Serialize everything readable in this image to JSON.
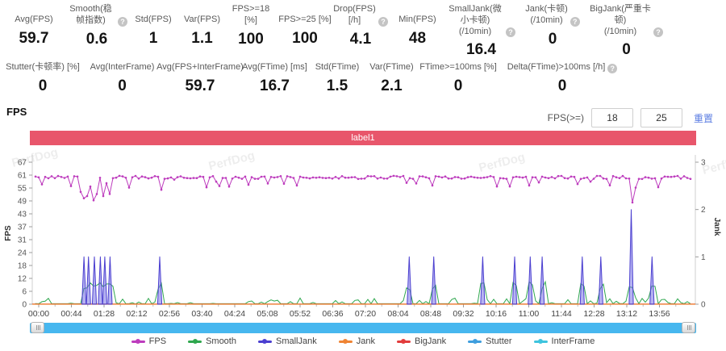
{
  "icons": {
    "help": "?"
  },
  "stats_row1": [
    {
      "label": "Avg(FPS)",
      "value": "59.7"
    },
    {
      "label": "Smooth(稳帧指数)",
      "value": "0.6"
    },
    {
      "label": "Std(FPS)",
      "value": "1"
    },
    {
      "label": "Var(FPS)",
      "value": "1.1"
    },
    {
      "label": "FPS>=18 [%]",
      "value": "100"
    },
    {
      "label": "FPS>=25 [%]",
      "value": "100"
    },
    {
      "label": "Drop(FPS) [/h]",
      "value": "4.1"
    },
    {
      "label": "Min(FPS)",
      "value": "48"
    },
    {
      "label": "SmallJank(微小卡顿)\n(/10min)",
      "value": "16.4"
    },
    {
      "label": "Jank(卡顿)\n(/10min)",
      "value": "0"
    },
    {
      "label": "BigJank(严重卡顿)\n(/10min)",
      "value": "0"
    }
  ],
  "stats_row2": [
    {
      "label": "Stutter(卡顿率) [%]",
      "value": "0"
    },
    {
      "label": "Avg(InterFrame)",
      "value": "0"
    },
    {
      "label": "Avg(FPS+InterFrame)",
      "value": "59.7"
    },
    {
      "label": "Avg(FTime) [ms]",
      "value": "16.7"
    },
    {
      "label": "Std(FTime)",
      "value": "1.5"
    },
    {
      "label": "Var(FTime)",
      "value": "2.1"
    },
    {
      "label": "FTime>=100ms [%]",
      "value": "0"
    },
    {
      "label": "Delta(FTime)>100ms [/h]",
      "value": "0"
    }
  ],
  "section": {
    "title": "FPS"
  },
  "fps_filter": {
    "label": "FPS(>=)",
    "min": "18",
    "max": "25",
    "reset": "重置"
  },
  "chart_data": {
    "type": "line",
    "title": "FPS",
    "watermark": "PerfDog",
    "grid": false,
    "legend_position": "bottom",
    "annotation_band": {
      "label": "label1",
      "color": "#e8566b"
    },
    "x_ticks": [
      "00:00",
      "00:44",
      "01:28",
      "02:12",
      "02:56",
      "03:40",
      "04:24",
      "05:08",
      "05:52",
      "06:36",
      "07:20",
      "08:04",
      "08:48",
      "09:32",
      "10:16",
      "11:00",
      "11:44",
      "12:28",
      "13:12",
      "13:56"
    ],
    "x_tick_interval_s": 44,
    "y_left": {
      "label": "FPS",
      "range": [
        0,
        67
      ],
      "ticks": [
        0,
        6,
        12,
        18,
        24,
        31,
        37,
        43,
        49,
        55,
        61,
        67
      ]
    },
    "y_right": {
      "label": "Jank",
      "range": [
        0,
        3
      ],
      "ticks": [
        0,
        1,
        2,
        3
      ]
    },
    "legend": [
      {
        "name": "FPS",
        "color": "#bd3cbd"
      },
      {
        "name": "Smooth",
        "color": "#2fa74e"
      },
      {
        "name": "SmallJank",
        "color": "#4b3fd0"
      },
      {
        "name": "Jank",
        "color": "#ef8434"
      },
      {
        "name": "BigJank",
        "color": "#e23c3c"
      },
      {
        "name": "Stutter",
        "color": "#3f9ede"
      },
      {
        "name": "InterFrame",
        "color": "#3ec4de"
      }
    ],
    "series": {
      "fps": {
        "axis": "left",
        "baseline": 60,
        "avg": 59.7,
        "min": 48,
        "dips_t_s_fps": [
          [
            58,
            53
          ],
          [
            61,
            50
          ],
          [
            64,
            55
          ],
          [
            67,
            51
          ],
          [
            72,
            53
          ],
          [
            75,
            49
          ],
          [
            80,
            52
          ],
          [
            85,
            56
          ],
          [
            89,
            51
          ],
          [
            96,
            52
          ],
          [
            120,
            55
          ],
          [
            163,
            54
          ],
          [
            348,
            56
          ],
          [
            530,
            56
          ],
          [
            660,
            56
          ],
          [
            798,
            48
          ],
          [
            806,
            55
          ]
        ]
      },
      "smalljank_spikes": {
        "axis": "right",
        "points_t_s_jank": [
          [
            61,
            1
          ],
          [
            67,
            1
          ],
          [
            75,
            1
          ],
          [
            83,
            1
          ],
          [
            89,
            1
          ],
          [
            96,
            1
          ],
          [
            163,
            1
          ],
          [
            499,
            1
          ],
          [
            532,
            1
          ],
          [
            598,
            1
          ],
          [
            641,
            1
          ],
          [
            662,
            1
          ],
          [
            678,
            1
          ],
          [
            732,
            1
          ],
          [
            757,
            1
          ],
          [
            798,
            2
          ],
          [
            826,
            1
          ]
        ]
      },
      "smooth": {
        "axis": "right",
        "typical": 0.1,
        "description": "small bumps near zero across full duration"
      },
      "jank": {
        "axis": "right",
        "constant": 0
      },
      "bigjank": {
        "axis": "right",
        "constant": 0
      },
      "stutter": {
        "axis": "right",
        "constant": 0
      },
      "interframe": {
        "axis": "right",
        "constant": 0
      }
    }
  }
}
